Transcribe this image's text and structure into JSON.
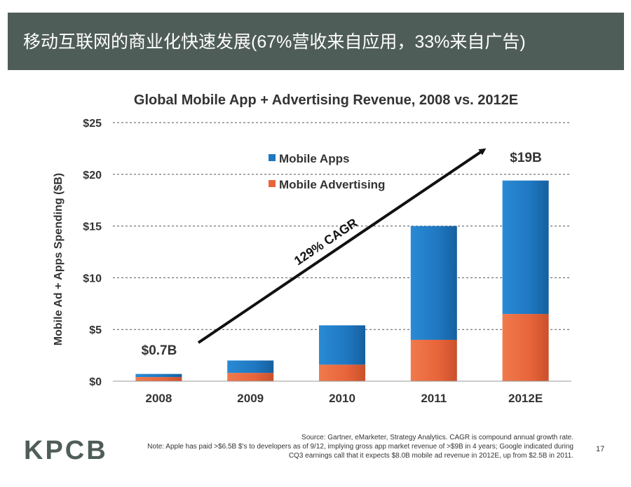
{
  "slide": {
    "title": "移动互联网的商业化快速发展(67%营收来自应用，33%来自广告)",
    "logo": "KPCB",
    "source_line": "Source: Gartner, eMarketer, Strategy Analytics. CAGR is compound annual growth rate.",
    "note_line1": "Note: Apple has paid >$6.5B $'s to developers as of 9/12, implying gross app market revenue of >$9B in 4 years; Google indicated during",
    "note_line2": "CQ3 earnings call that it expects $8.0B mobile ad revenue in 2012E, up from $2.5B in 2011.",
    "page_number": "17"
  },
  "colors": {
    "header_bg": "#4f5d58",
    "mobile_apps": "#1f77c0",
    "mobile_advertising": "#e8643a"
  },
  "chart_data": {
    "type": "bar",
    "stacked": true,
    "title": "Global Mobile App + Advertising Revenue, 2008 vs. 2012E",
    "xlabel": "",
    "ylabel": "Mobile Ad + Apps Spending ($B)",
    "ylim": [
      0,
      25
    ],
    "yticks": [
      0,
      5,
      10,
      15,
      20,
      25
    ],
    "ytick_labels": [
      "$0",
      "$5",
      "$10",
      "$15",
      "$20",
      "$25"
    ],
    "grid": true,
    "legend_position": "top-left",
    "categories": [
      "2008",
      "2009",
      "2010",
      "2011",
      "2012E"
    ],
    "series": [
      {
        "name": "Mobile Advertising",
        "values": [
          0.4,
          0.8,
          1.6,
          4.0,
          6.5
        ]
      },
      {
        "name": "Mobile Apps",
        "values": [
          0.3,
          1.2,
          3.8,
          11.0,
          12.9
        ]
      }
    ],
    "annotations": {
      "first_total_label": "$0.7B",
      "last_total_label": "$19B",
      "cagr_label": "129% CAGR"
    }
  }
}
